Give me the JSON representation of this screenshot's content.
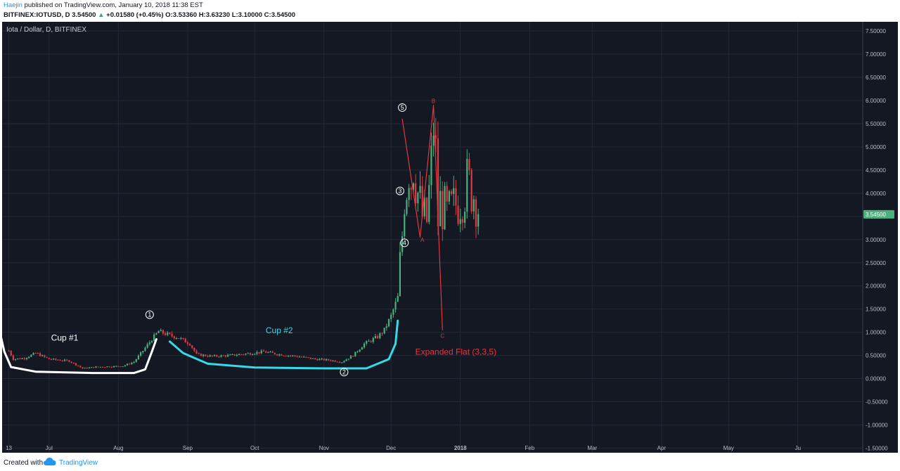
{
  "header": {
    "author": "Haejin",
    "published_text": "published on TradingView.com, January 10, 2018 11:38 EST",
    "symbol": "BITFINEX:IOTUSD, D",
    "price": "3.54500",
    "change_arrow": "▲",
    "change": "+0.01580 (+0.45%)",
    "o_label": "O:",
    "o_value": "3.53360",
    "h_label": "H:",
    "h_value": "3.63230",
    "l_label": "L:",
    "l_value": "3.10000",
    "c_label": "C:",
    "c_value": "3.54500"
  },
  "footer": {
    "created_with": "Created with",
    "brand": "TradingView"
  },
  "colors": {
    "background": "#141823",
    "grid": "#232838",
    "up": "#4caf7d",
    "down": "#e0393e",
    "cup1": "#ffffff",
    "cup2": "#36d9e8",
    "annotation": "#e0393e",
    "last_price": "#4caf7d"
  },
  "chart_data": {
    "type": "candlestick",
    "title": "Iota / Dollar, D, BITFINEX",
    "y_ticks": [
      7.5,
      7.0,
      6.5,
      6.0,
      5.5,
      5.0,
      4.5,
      4.0,
      3.5,
      3.0,
      2.5,
      2.0,
      1.5,
      1.0,
      0.5,
      0.0,
      -0.5,
      -1.0,
      -1.5
    ],
    "y_tick_labels": [
      "7.50000",
      "7.00000",
      "6.50000",
      "6.00000",
      "5.50000",
      "5.00000",
      "4.50000",
      "4.00000",
      "3.50000",
      "3.00000",
      "2.50000",
      "2.00000",
      "1.50000",
      "1.00000",
      "0.50000",
      "0.00000",
      "-0.50000",
      "-1.00000",
      "-1.50000"
    ],
    "ylim": [
      -1.6,
      7.7
    ],
    "x_start": "2017-06-10",
    "x_end": "2018-06-30",
    "x_ticks": [
      {
        "date": "2017-06-13",
        "label": "13",
        "bold": false
      },
      {
        "date": "2017-07-01",
        "label": "Jul",
        "bold": false
      },
      {
        "date": "2017-08-01",
        "label": "Aug",
        "bold": false
      },
      {
        "date": "2017-09-01",
        "label": "Sep",
        "bold": false
      },
      {
        "date": "2017-10-01",
        "label": "Oct",
        "bold": false
      },
      {
        "date": "2017-11-01",
        "label": "Nov",
        "bold": false
      },
      {
        "date": "2017-12-01",
        "label": "Dec",
        "bold": false
      },
      {
        "date": "2018-01-01",
        "label": "2018",
        "bold": true
      },
      {
        "date": "2018-02-01",
        "label": "Feb",
        "bold": false
      },
      {
        "date": "2018-03-01",
        "label": "Mar",
        "bold": false
      },
      {
        "date": "2018-04-01",
        "label": "Apr",
        "bold": false
      },
      {
        "date": "2018-05-01",
        "label": "May",
        "bold": false
      },
      {
        "date": "2018-06-01",
        "label": "Ju",
        "bold": false
      }
    ],
    "last_price": 3.545,
    "last_price_label": "3.54500",
    "series_close": [
      {
        "date": "2017-06-13",
        "close": 0.6
      },
      {
        "date": "2017-06-15",
        "close": 0.42
      },
      {
        "date": "2017-06-20",
        "close": 0.44
      },
      {
        "date": "2017-06-25",
        "close": 0.55
      },
      {
        "date": "2017-07-01",
        "close": 0.42
      },
      {
        "date": "2017-07-10",
        "close": 0.38
      },
      {
        "date": "2017-07-16",
        "close": 0.22
      },
      {
        "date": "2017-07-22",
        "close": 0.25
      },
      {
        "date": "2017-07-28",
        "close": 0.26
      },
      {
        "date": "2017-08-03",
        "close": 0.27
      },
      {
        "date": "2017-08-08",
        "close": 0.36
      },
      {
        "date": "2017-08-12",
        "close": 0.6
      },
      {
        "date": "2017-08-16",
        "close": 0.85
      },
      {
        "date": "2017-08-19",
        "close": 1.02
      },
      {
        "date": "2017-08-23",
        "close": 0.95
      },
      {
        "date": "2017-08-28",
        "close": 0.88
      },
      {
        "date": "2017-09-02",
        "close": 0.75
      },
      {
        "date": "2017-09-05",
        "close": 0.52
      },
      {
        "date": "2017-09-12",
        "close": 0.48
      },
      {
        "date": "2017-09-20",
        "close": 0.5
      },
      {
        "date": "2017-09-30",
        "close": 0.55
      },
      {
        "date": "2017-10-05",
        "close": 0.58
      },
      {
        "date": "2017-10-12",
        "close": 0.52
      },
      {
        "date": "2017-10-20",
        "close": 0.48
      },
      {
        "date": "2017-10-28",
        "close": 0.42
      },
      {
        "date": "2017-11-03",
        "close": 0.4
      },
      {
        "date": "2017-11-09",
        "close": 0.36
      },
      {
        "date": "2017-11-14",
        "close": 0.5
      },
      {
        "date": "2017-11-19",
        "close": 0.75
      },
      {
        "date": "2017-11-25",
        "close": 0.9
      },
      {
        "date": "2017-11-28",
        "close": 1.05
      },
      {
        "date": "2017-12-01",
        "close": 1.35
      },
      {
        "date": "2017-12-04",
        "close": 1.75
      },
      {
        "date": "2017-12-05",
        "close": 2.5
      },
      {
        "date": "2017-12-06",
        "close": 3.1
      },
      {
        "date": "2017-12-07",
        "close": 4.0
      },
      {
        "date": "2017-12-08",
        "close": 4.2
      },
      {
        "date": "2017-12-09",
        "close": 4.6
      },
      {
        "date": "2017-12-10",
        "close": 4.3
      },
      {
        "date": "2017-12-11",
        "close": 4.7
      },
      {
        "date": "2017-12-13",
        "close": 4.0
      },
      {
        "date": "2017-12-15",
        "close": 3.5
      },
      {
        "date": "2017-12-17",
        "close": 3.4
      },
      {
        "date": "2017-12-19",
        "close": 4.6
      },
      {
        "date": "2017-12-20",
        "close": 5.5
      },
      {
        "date": "2017-12-21",
        "close": 4.8
      },
      {
        "date": "2017-12-22",
        "close": 3.4
      },
      {
        "date": "2017-12-23",
        "close": 3.8
      },
      {
        "date": "2017-12-26",
        "close": 3.5
      },
      {
        "date": "2017-12-29",
        "close": 3.7
      },
      {
        "date": "2018-01-01",
        "close": 3.9
      },
      {
        "date": "2018-01-04",
        "close": 4.2
      },
      {
        "date": "2018-01-06",
        "close": 4.1
      },
      {
        "date": "2018-01-08",
        "close": 3.9
      },
      {
        "date": "2018-01-10",
        "close": 3.545
      }
    ],
    "annotations": [
      {
        "label": "Cup #1",
        "date": "2017-07-08",
        "price": 0.82,
        "color": "#ffffff"
      },
      {
        "label": "Cup #2",
        "date": "2017-10-12",
        "price": 0.98,
        "color": "#36d9e8"
      },
      {
        "label": "Expanded Flat (3,3,5)",
        "date": "2017-12-30",
        "price": 0.52,
        "color": "#e0393e"
      }
    ],
    "wave_labels": [
      {
        "label": "1",
        "date": "2017-08-15",
        "price": 1.38
      },
      {
        "label": "2",
        "date": "2017-11-10",
        "price": 0.14
      },
      {
        "label": "3",
        "date": "2017-12-05",
        "price": 4.05
      },
      {
        "label": "4",
        "date": "2017-12-07",
        "price": 2.93
      },
      {
        "label": "5",
        "date": "2017-12-06",
        "price": 5.85
      }
    ],
    "abc_labels": [
      {
        "label": "A",
        "date": "2017-12-15",
        "price": 2.95
      },
      {
        "label": "B",
        "date": "2017-12-20",
        "price": 5.95
      },
      {
        "label": "C",
        "date": "2017-12-24",
        "price": 0.88
      }
    ],
    "cup1_path": [
      {
        "date": "2017-06-09",
        "price": 1.0
      },
      {
        "date": "2017-06-11",
        "price": 0.58
      },
      {
        "date": "2017-06-14",
        "price": 0.25
      },
      {
        "date": "2017-06-25",
        "price": 0.15
      },
      {
        "date": "2017-07-20",
        "price": 0.12
      },
      {
        "date": "2017-08-08",
        "price": 0.12
      },
      {
        "date": "2017-08-13",
        "price": 0.2
      },
      {
        "date": "2017-08-16",
        "price": 0.58
      },
      {
        "date": "2017-08-18",
        "price": 0.85
      }
    ],
    "cup2_path": [
      {
        "date": "2017-08-24",
        "price": 0.8
      },
      {
        "date": "2017-08-30",
        "price": 0.55
      },
      {
        "date": "2017-09-10",
        "price": 0.32
      },
      {
        "date": "2017-10-01",
        "price": 0.24
      },
      {
        "date": "2017-11-01",
        "price": 0.22
      },
      {
        "date": "2017-11-20",
        "price": 0.22
      },
      {
        "date": "2017-11-30",
        "price": 0.42
      },
      {
        "date": "2017-12-03",
        "price": 0.75
      },
      {
        "date": "2017-12-04",
        "price": 1.25
      }
    ],
    "correction_path": [
      {
        "date": "2017-12-06",
        "price": 5.6
      },
      {
        "date": "2017-12-14",
        "price": 3.05
      },
      {
        "date": "2017-12-20",
        "price": 5.9
      },
      {
        "date": "2017-12-24",
        "price": 1.05
      }
    ]
  }
}
